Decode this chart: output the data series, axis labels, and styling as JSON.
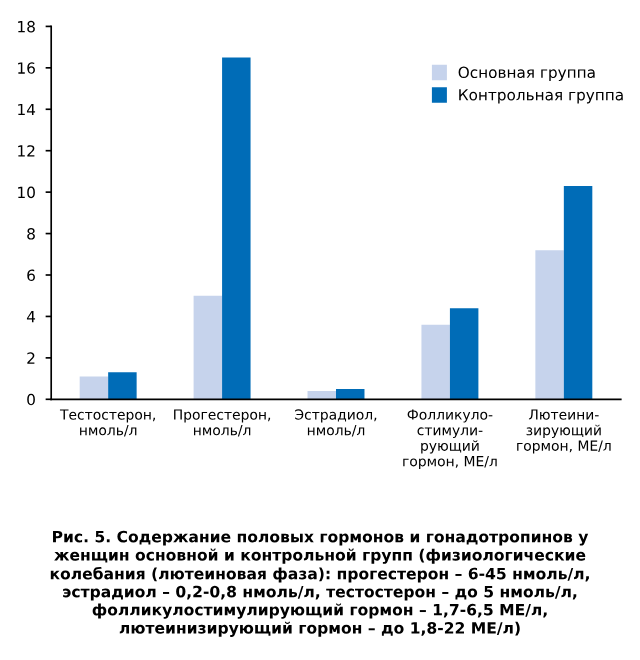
{
  "chart_data": {
    "type": "bar",
    "categories": [
      "Тестостерон,\nнмоль/л",
      "Прогестерон,\nнмоль/л",
      "Эстрадиол,\nнмоль/л",
      "Фолликуло-\nстимули-\nрующий\nгормон, МЕ/л",
      "Лютеини-\nзирующий\nгормон, МЕ/л"
    ],
    "series": [
      {
        "name": "Основная группа",
        "color": "#c6d3ec",
        "values": [
          1.1,
          5.0,
          0.4,
          3.6,
          7.2
        ]
      },
      {
        "name": "Контрольная группа",
        "color": "#006cb7",
        "values": [
          1.3,
          16.5,
          0.5,
          4.4,
          10.3
        ]
      }
    ],
    "ylim": [
      0,
      18
    ],
    "yticks": [
      0,
      2,
      4,
      6,
      8,
      10,
      12,
      14,
      16,
      18
    ],
    "grid": false,
    "legend": "top right",
    "annotations": [
      "Рис. 5. Содержание половых гормонов и гонадотропинов у\nженщин основной и контрольной групп (физиологические\nколебания (лютеиновая фаза): прогестерон – 6-45 нмоль/л,\nэстрадиол – 0,2-0,8 нмоль/л, тестостерон – до 5 нмоль/л,\nфолликулостимулирующий гормон – 1,7-6,5 МЕ/л,\nлютеинизирующий гормон – до 1,8-22 МЕ/л)"
    ]
  }
}
